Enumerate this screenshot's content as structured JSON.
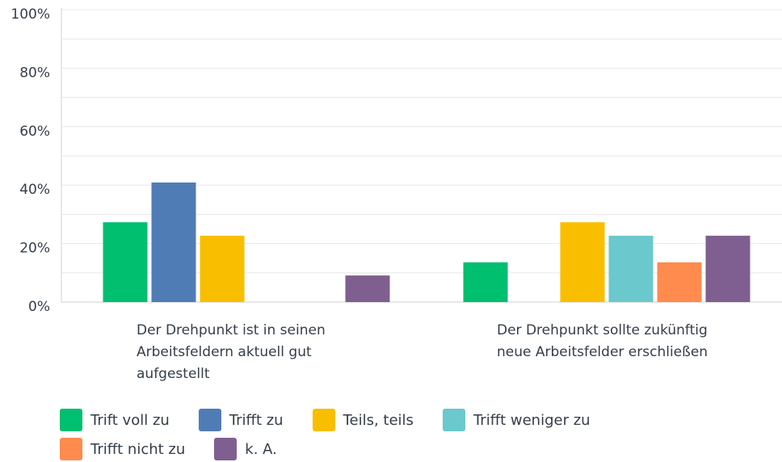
{
  "chart_data": {
    "type": "bar",
    "categories": [
      "Der Drehpunkt ist in seinen Arbeitsfeldern aktuell gut aufgestellt",
      "Der Drehpunkt sollte zukünftig neue Arbeitsfelder erschließen"
    ],
    "series": [
      {
        "name": "Trift voll zu",
        "color": "#00bf6f",
        "values": [
          27.3,
          13.6
        ]
      },
      {
        "name": "Trifft zu",
        "color": "#507cb6",
        "values": [
          40.9,
          0
        ]
      },
      {
        "name": "Teils, teils",
        "color": "#f9be00",
        "values": [
          22.7,
          27.3
        ]
      },
      {
        "name": "Trifft weniger zu",
        "color": "#6bc8cd",
        "values": [
          0,
          22.7
        ]
      },
      {
        "name": "Trifft nicht zu",
        "color": "#ff8b4f",
        "values": [
          0,
          13.6
        ]
      },
      {
        "name": "k. A.",
        "color": "#7f5f90",
        "values": [
          9.1,
          22.7
        ]
      }
    ],
    "ylim": [
      0,
      100
    ],
    "yticks": [
      {
        "value": 0,
        "label": "0%"
      },
      {
        "value": 20,
        "label": "20%"
      },
      {
        "value": 40,
        "label": "40%"
      },
      {
        "value": 60,
        "label": "60%"
      },
      {
        "value": 80,
        "label": "80%"
      },
      {
        "value": 100,
        "label": "100%"
      }
    ],
    "minor_yticks": [
      10,
      30,
      50,
      70,
      90
    ],
    "grid": true,
    "legend": "bottom"
  }
}
